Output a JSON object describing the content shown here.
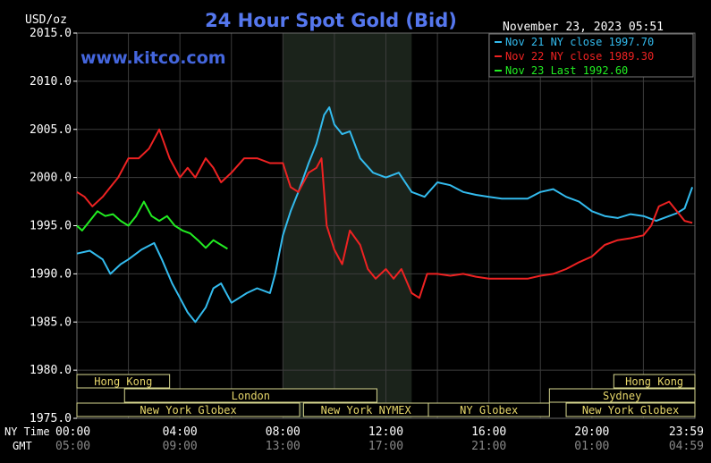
{
  "chart_data": {
    "type": "line",
    "title": "24 Hour Spot Gold (Bid)",
    "watermark": "www.kitco.com",
    "ylabel": "USD/oz",
    "timestamp": "November 23, 2023 05:51",
    "ylim": [
      1975.0,
      2015.0
    ],
    "y_ticks": [
      "2015.0",
      "2010.0",
      "2005.0",
      "2000.0",
      "1995.0",
      "1990.0",
      "1985.0",
      "1980.0",
      "1975.0"
    ],
    "y_tick_values": [
      2015,
      2010,
      2005,
      2000,
      1995,
      1990,
      1985,
      1980,
      1975
    ],
    "xlim_hours": [
      0,
      24
    ],
    "x_rows": {
      "ny_label": "NY Time",
      "gmt_label": "GMT",
      "ny_ticks": [
        "00:00",
        "04:00",
        "08:00",
        "12:00",
        "16:00",
        "20:00",
        "23:59"
      ],
      "gmt_ticks": [
        "05:00",
        "09:00",
        "13:00",
        "17:00",
        "21:00",
        "01:00",
        "04:59"
      ],
      "tick_hours": [
        0,
        4,
        8,
        12,
        16,
        20,
        23.98
      ]
    },
    "shaded_session_hours": [
      8.0,
      13.0
    ],
    "grid": true,
    "legend_position": "top-right",
    "series": [
      {
        "name": "Nov 21 NY close 1997.70",
        "color": "#33bbee",
        "x": [
          0.0,
          0.5,
          1.0,
          1.3,
          1.7,
          2.0,
          2.5,
          3.0,
          3.3,
          3.7,
          4.0,
          4.3,
          4.6,
          5.0,
          5.3,
          5.6,
          6.0,
          6.3,
          6.6,
          7.0,
          7.5,
          7.7,
          8.0,
          8.3,
          8.6,
          9.0,
          9.3,
          9.6,
          9.8,
          10.0,
          10.3,
          10.6,
          11.0,
          11.5,
          12.0,
          12.5,
          13.0,
          13.5,
          14.0,
          14.5,
          15.0,
          15.5,
          16.0,
          16.5,
          17.0,
          17.5,
          18.0,
          18.5,
          19.0,
          19.5,
          20.0,
          20.5,
          21.0,
          21.5,
          22.0,
          22.5,
          23.0,
          23.3,
          23.6,
          23.9
        ],
        "values": [
          1992.1,
          1992.4,
          1991.5,
          1990.0,
          1991.0,
          1991.5,
          1992.5,
          1993.2,
          1991.5,
          1989.0,
          1987.5,
          1986.0,
          1985.0,
          1986.5,
          1988.5,
          1989.0,
          1987.0,
          1987.5,
          1988.0,
          1988.5,
          1988.0,
          1990.0,
          1994.0,
          1996.5,
          1998.5,
          2001.5,
          2003.5,
          2006.5,
          2007.3,
          2005.5,
          2004.5,
          2004.8,
          2002.0,
          2000.5,
          2000.0,
          2000.5,
          1998.5,
          1998.0,
          1999.5,
          1999.2,
          1998.5,
          1998.2,
          1998.0,
          1997.8,
          1997.8,
          1997.8,
          1998.5,
          1998.8,
          1998.0,
          1997.5,
          1996.5,
          1996.0,
          1995.8,
          1996.2,
          1996.0,
          1995.5,
          1996.0,
          1996.3,
          1996.8,
          1999.0
        ]
      },
      {
        "name": "Nov 22 NY close 1989.30",
        "color": "#ee2222",
        "x": [
          0.0,
          0.3,
          0.6,
          1.0,
          1.3,
          1.6,
          2.0,
          2.4,
          2.8,
          3.2,
          3.6,
          4.0,
          4.3,
          4.6,
          5.0,
          5.3,
          5.6,
          6.0,
          6.5,
          7.0,
          7.5,
          8.0,
          8.3,
          8.6,
          9.0,
          9.3,
          9.5,
          9.7,
          10.0,
          10.3,
          10.6,
          11.0,
          11.3,
          11.6,
          12.0,
          12.3,
          12.6,
          13.0,
          13.3,
          13.6,
          14.0,
          14.5,
          15.0,
          15.5,
          16.0,
          16.5,
          17.0,
          17.5,
          18.0,
          18.5,
          19.0,
          19.5,
          20.0,
          20.5,
          21.0,
          21.5,
          22.0,
          22.3,
          22.6,
          23.0,
          23.3,
          23.6,
          23.9
        ],
        "values": [
          1998.5,
          1998.0,
          1997.0,
          1998.0,
          1999.0,
          2000.0,
          2002.0,
          2002.0,
          2003.0,
          2005.0,
          2002.0,
          2000.0,
          2001.0,
          2000.0,
          2002.0,
          2001.0,
          1999.5,
          2000.5,
          2002.0,
          2002.0,
          2001.5,
          2001.5,
          1999.0,
          1998.5,
          2000.5,
          2001.0,
          2002.0,
          1995.0,
          1992.5,
          1991.0,
          1994.5,
          1993.0,
          1990.5,
          1989.5,
          1990.5,
          1989.5,
          1990.5,
          1988.0,
          1987.5,
          1990.0,
          1990.0,
          1989.8,
          1990.0,
          1989.7,
          1989.5,
          1989.5,
          1989.5,
          1989.5,
          1989.8,
          1990.0,
          1990.5,
          1991.2,
          1991.8,
          1993.0,
          1993.5,
          1993.7,
          1994.0,
          1995.0,
          1997.0,
          1997.5,
          1996.5,
          1995.5,
          1995.3
        ]
      },
      {
        "name": "Nov 23 Last 1992.60",
        "color": "#22ee22",
        "x": [
          0.0,
          0.2,
          0.5,
          0.8,
          1.1,
          1.4,
          1.7,
          2.0,
          2.3,
          2.6,
          2.9,
          3.2,
          3.5,
          3.8,
          4.1,
          4.4,
          4.7,
          5.0,
          5.3,
          5.6,
          5.85
        ],
        "values": [
          1995.0,
          1994.5,
          1995.5,
          1996.5,
          1996.0,
          1996.2,
          1995.5,
          1995.0,
          1996.0,
          1997.5,
          1996.0,
          1995.5,
          1996.0,
          1995.0,
          1994.5,
          1994.2,
          1993.5,
          1992.7,
          1993.5,
          1993.0,
          1992.6
        ]
      }
    ],
    "market_sessions": [
      {
        "name": "Hong Kong",
        "start": 0.0,
        "end": 3.6,
        "row": 0
      },
      {
        "name": "London",
        "start": 1.85,
        "end": 11.65,
        "row": 1
      },
      {
        "name": "New York Globex",
        "start": 0.0,
        "end": 8.65,
        "row": 2
      },
      {
        "name": "New York NYMEX",
        "start": 8.8,
        "end": 13.65,
        "row": 2
      },
      {
        "name": "NY Globex",
        "start": 13.65,
        "end": 18.35,
        "row": 2
      },
      {
        "name": "Hong Kong",
        "start": 20.85,
        "end": 24.0,
        "row": 0
      },
      {
        "name": "Sydney",
        "start": 18.35,
        "end": 24.0,
        "row": 1
      },
      {
        "name": "New York Globex",
        "start": 19.0,
        "end": 24.0,
        "row": 2
      }
    ]
  }
}
